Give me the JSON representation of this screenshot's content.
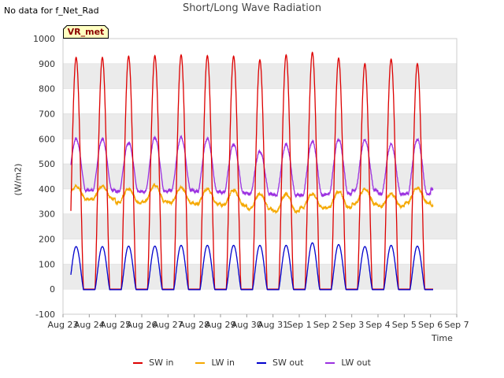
{
  "header": {
    "nodata_text": "No data for f_Net_Rad",
    "title": "Short/Long Wave Radiation",
    "badge": "VR_met"
  },
  "colors": {
    "sw_in": "#dd0000",
    "lw_in": "#f5a800",
    "sw_out": "#0000cc",
    "lw_out": "#9b30e0",
    "band": "#ebebeb",
    "badge_fill": "#ffffc0"
  },
  "chart_data": {
    "type": "line",
    "title": "Short/Long Wave Radiation",
    "xlabel": "Time",
    "ylabel": "(W/m2)",
    "ylim": [
      -100,
      1000
    ],
    "yticks": [
      -100,
      0,
      100,
      200,
      300,
      400,
      500,
      600,
      700,
      800,
      900,
      1000
    ],
    "xlim": [
      0,
      15
    ],
    "xticks": [
      "Aug 23",
      "Aug 24",
      "Aug 25",
      "Aug 26",
      "Aug 27",
      "Aug 28",
      "Aug 29",
      "Aug 30",
      "Aug 31",
      "Sep 1",
      "Sep 2",
      "Sep 3",
      "Sep 4",
      "Sep 5",
      "Sep 6",
      "Sep 7"
    ],
    "grid": true,
    "legend_position": "bottom",
    "series_start_day": 0.3,
    "series_end_day": 14.1,
    "series": [
      {
        "name": "SW in",
        "color": "#dd0000",
        "daily_peak": [
          925,
          930,
          932,
          935,
          932,
          930,
          915,
          935,
          945,
          922,
          900,
          918,
          900,
          925
        ]
      },
      {
        "name": "LW in",
        "color": "#f5a800",
        "daily_peak": [
          410,
          400,
          415,
          405,
          400,
          395,
          380,
          380,
          380,
          390,
          400,
          380,
          405,
          395
        ],
        "daily_low": [
          360,
          345,
          350,
          345,
          340,
          335,
          320,
          310,
          325,
          325,
          340,
          330,
          345,
          335
        ]
      },
      {
        "name": "SW out",
        "color": "#0000cc",
        "daily_peak": [
          170,
          172,
          172,
          175,
          175,
          175,
          175,
          175,
          185,
          178,
          170,
          175,
          172,
          178
        ]
      },
      {
        "name": "LW out",
        "color": "#9b30e0",
        "daily_peak": [
          600,
          585,
          605,
          605,
          600,
          578,
          550,
          578,
          590,
          598,
          595,
          578,
          598,
          578
        ],
        "daily_low": [
          395,
          390,
          390,
          395,
          390,
          385,
          380,
          375,
          375,
          380,
          395,
          380,
          380,
          400
        ]
      }
    ]
  },
  "legend": [
    {
      "label": "SW in",
      "color": "#dd0000"
    },
    {
      "label": "LW in",
      "color": "#f5a800"
    },
    {
      "label": "SW out",
      "color": "#0000cc"
    },
    {
      "label": "LW out",
      "color": "#9b30e0"
    }
  ]
}
